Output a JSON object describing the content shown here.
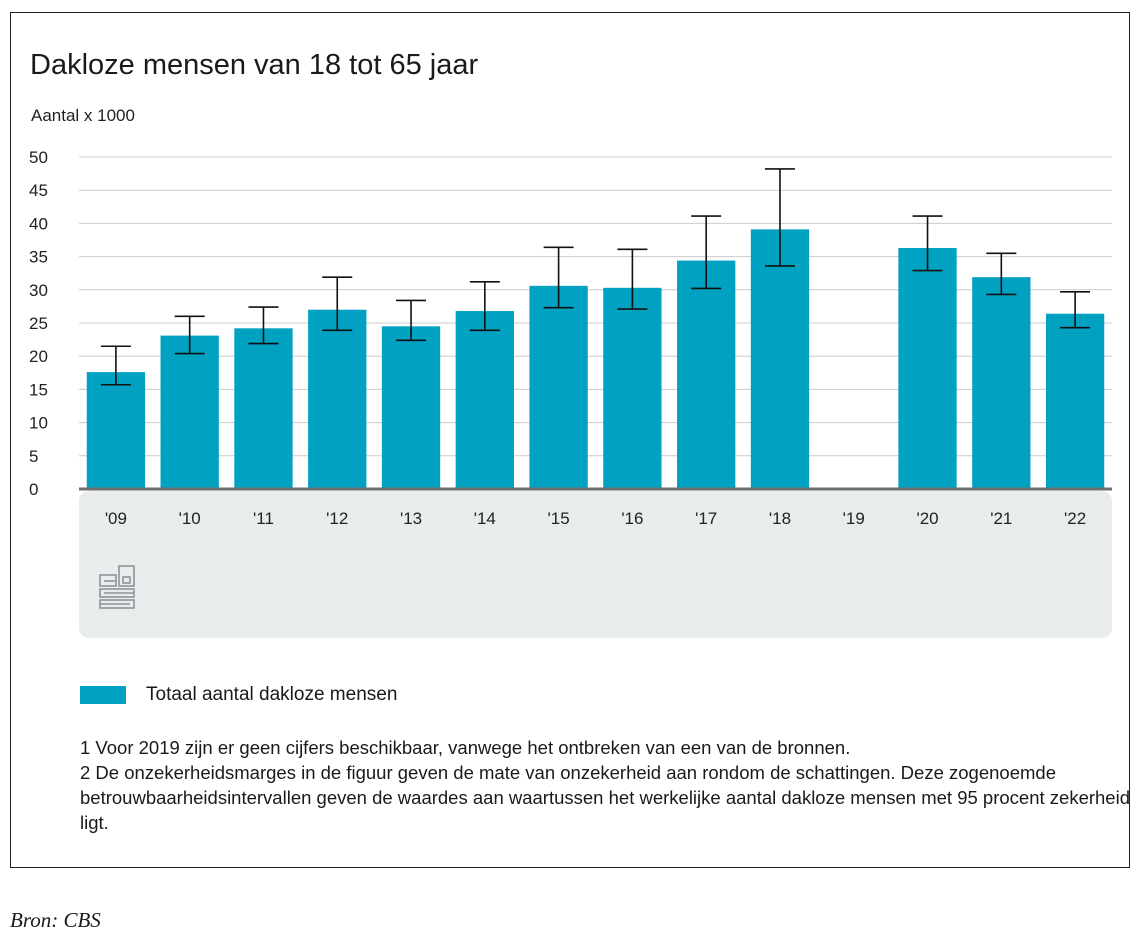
{
  "chart_data": {
    "type": "bar",
    "title": "Dakloze mensen van 18 tot 65 jaar",
    "ylabel": "Aantal x 1000",
    "xlabel": "",
    "ylim": [
      0,
      50
    ],
    "yticks": [
      0,
      5,
      10,
      15,
      20,
      25,
      30,
      35,
      40,
      45,
      50
    ],
    "grid": true,
    "categories": [
      "'09",
      "'10",
      "'11",
      "'12",
      "'13",
      "'14",
      "'15",
      "'16",
      "'17",
      "'18",
      "'19",
      "'20",
      "'21",
      "'22"
    ],
    "series": [
      {
        "name": "Totaal aantal dakloze mensen",
        "color": "#00a1c1",
        "values": [
          17.6,
          23.1,
          24.2,
          27.0,
          24.5,
          26.8,
          30.6,
          30.3,
          34.4,
          39.1,
          null,
          36.3,
          31.9,
          26.4
        ],
        "error_low": [
          15.7,
          20.4,
          21.9,
          23.9,
          22.4,
          23.9,
          27.3,
          27.1,
          30.2,
          33.6,
          null,
          32.9,
          29.3,
          24.3
        ],
        "error_high": [
          21.5,
          26.0,
          27.4,
          31.9,
          28.4,
          31.2,
          36.4,
          36.1,
          41.1,
          48.2,
          null,
          41.1,
          35.5,
          29.7
        ]
      }
    ],
    "legend": "bottom-left"
  },
  "notes": [
    "1 Voor 2019 zijn er geen cijfers beschikbaar, vanwege het ontbreken van een van de bronnen.",
    "2 De onzekerheidsmarges in de figuur geven de mate van onzekerheid aan rondom de schattingen. Deze zogenoemde betrouwbaarheidsintervallen geven de waardes aan waartussen het werkelijke aantal dakloze mensen met 95 procent zekerheid ligt."
  ],
  "source": "Bron: CBS",
  "logo": "cbs",
  "colors": {
    "bar": "#00a1c1",
    "panel": "#e9eced",
    "grid": "#cccccc",
    "axis": "#6f6f6f"
  }
}
